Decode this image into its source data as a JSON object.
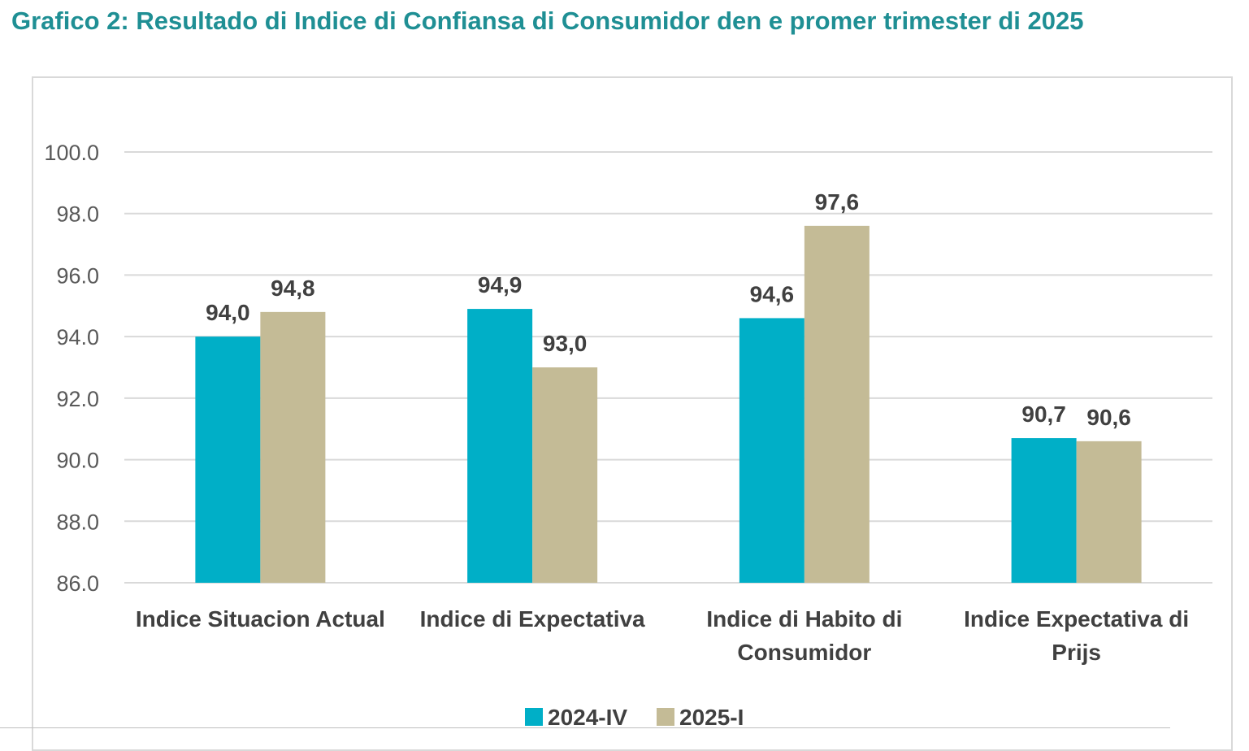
{
  "chart_data": {
    "type": "bar",
    "title": "Grafico 2: Resultado di Indice di Confiansa di Consumidor den e promer trimester di 2025",
    "categories": [
      [
        "Indice Situacion Actual"
      ],
      [
        "Indice di Expectativa"
      ],
      [
        "Indice di Habito di",
        "Consumidor"
      ],
      [
        "Indice Expectativa di",
        "Prijs"
      ]
    ],
    "series": [
      {
        "name": "2024-IV",
        "color": "#00afc7",
        "values": [
          94.0,
          94.9,
          94.6,
          90.7
        ],
        "labels": [
          "94,0",
          "94,9",
          "94,6",
          "90,7"
        ]
      },
      {
        "name": "2025-I",
        "color": "#c4bb96",
        "values": [
          94.8,
          93.0,
          97.6,
          90.6
        ],
        "labels": [
          "94,8",
          "93,0",
          "97,6",
          "90,6"
        ]
      }
    ],
    "ylim": [
      86.0,
      100.0
    ],
    "yticks": [
      "86.0",
      "88.0",
      "90.0",
      "92.0",
      "94.0",
      "96.0",
      "98.0",
      "100.0"
    ],
    "grid": true,
    "gridline_color": "#d9d9d9",
    "legend_position": "bottom",
    "xlabel": "",
    "ylabel": ""
  }
}
